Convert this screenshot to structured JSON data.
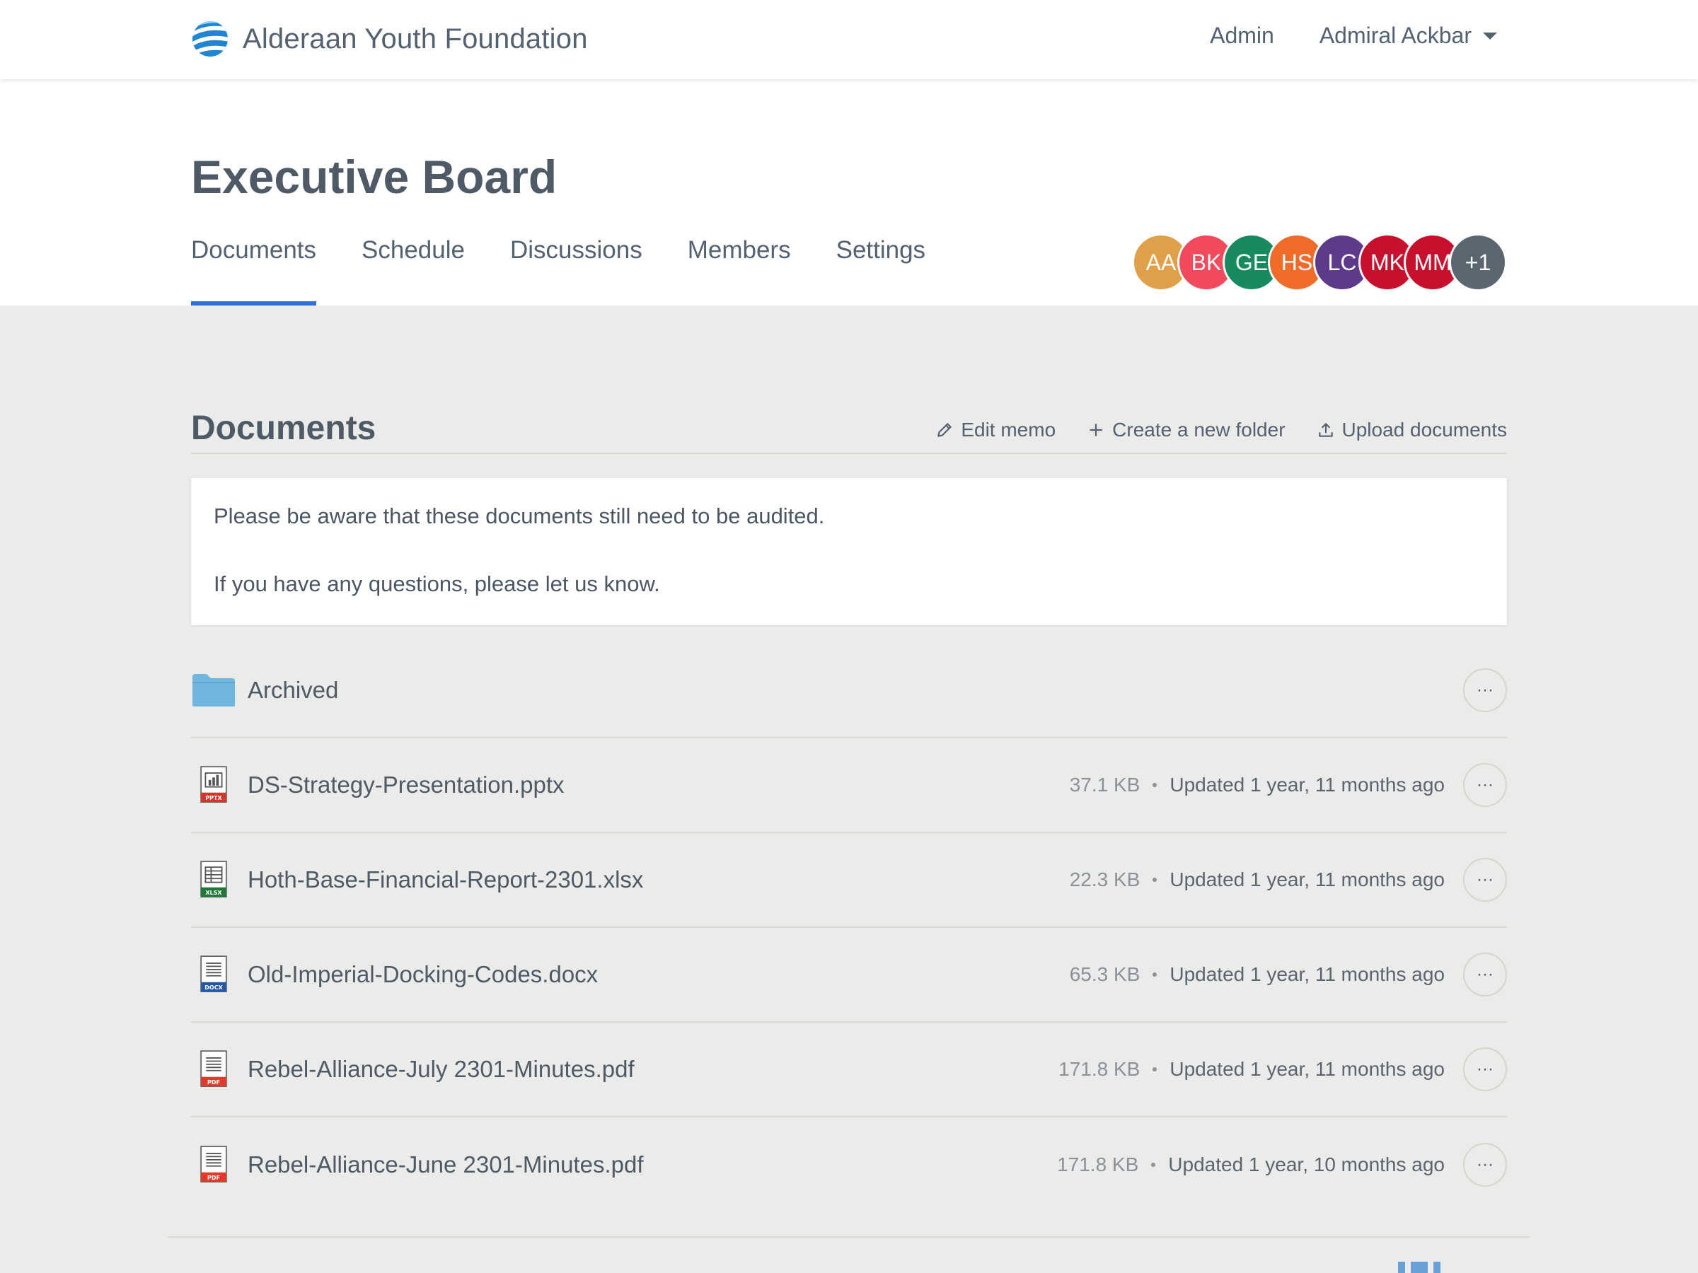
{
  "navbar": {
    "brand_name": "Alderaan Youth Foundation",
    "admin_label": "Admin",
    "user_name": "Admiral Ackbar"
  },
  "group": {
    "title": "Executive Board",
    "tabs": [
      {
        "label": "Documents",
        "active": true
      },
      {
        "label": "Schedule",
        "active": false
      },
      {
        "label": "Discussions",
        "active": false
      },
      {
        "label": "Members",
        "active": false
      },
      {
        "label": "Settings",
        "active": false
      }
    ],
    "members": [
      {
        "initials": "AA",
        "color": "#e0a04a"
      },
      {
        "initials": "BK",
        "color": "#f04a5c"
      },
      {
        "initials": "GE",
        "color": "#188a60"
      },
      {
        "initials": "HS",
        "color": "#f06a28"
      },
      {
        "initials": "LC",
        "color": "#5e3a8a"
      },
      {
        "initials": "MK",
        "color": "#c8102e"
      },
      {
        "initials": "MM",
        "color": "#c8102e"
      },
      {
        "initials": "+1",
        "color": "#5b6670"
      }
    ]
  },
  "documents": {
    "section_title": "Documents",
    "actions": {
      "edit_memo": "Edit memo",
      "new_folder": "Create a new folder",
      "upload": "Upload documents"
    },
    "memo": {
      "line1": "Please be aware that these documents still need to be audited.",
      "line2": "If you have any questions, please let us know."
    },
    "more_label": "···",
    "items": [
      {
        "type": "folder",
        "name": "Archived",
        "size": "",
        "updated": "",
        "icon": "folder-icon"
      },
      {
        "type": "pptx",
        "name": "DS-Strategy-Presentation.pptx",
        "size": "37.1 KB",
        "updated": "Updated 1 year, 11 months ago",
        "icon": "pptx-file-icon",
        "badge": "PPTX",
        "badge_color": "#d9342b"
      },
      {
        "type": "xlsx",
        "name": "Hoth-Base-Financial-Report-2301.xlsx",
        "size": "22.3 KB",
        "updated": "Updated 1 year, 11 months ago",
        "icon": "xlsx-file-icon",
        "badge": "XLSX",
        "badge_color": "#1f7a3a"
      },
      {
        "type": "docx",
        "name": "Old-Imperial-Docking-Codes.docx",
        "size": "65.3 KB",
        "updated": "Updated 1 year, 11 months ago",
        "icon": "docx-file-icon",
        "badge": "DOCX",
        "badge_color": "#2456a6"
      },
      {
        "type": "pdf",
        "name": "Rebel-Alliance-July 2301-Minutes.pdf",
        "size": "171.8 KB",
        "updated": "Updated 1 year, 11 months ago",
        "icon": "pdf-file-icon",
        "badge": "PDF",
        "badge_color": "#e23a2b"
      },
      {
        "type": "pdf",
        "name": "Rebel-Alliance-June 2301-Minutes.pdf",
        "size": "171.8 KB",
        "updated": "Updated 1 year, 10 months ago",
        "icon": "pdf-file-icon",
        "badge": "PDF",
        "badge_color": "#e23a2b"
      }
    ]
  },
  "colors": {
    "accent": "#2f6fd6",
    "folder": "#6fb7de",
    "background": "#ebebe9"
  }
}
